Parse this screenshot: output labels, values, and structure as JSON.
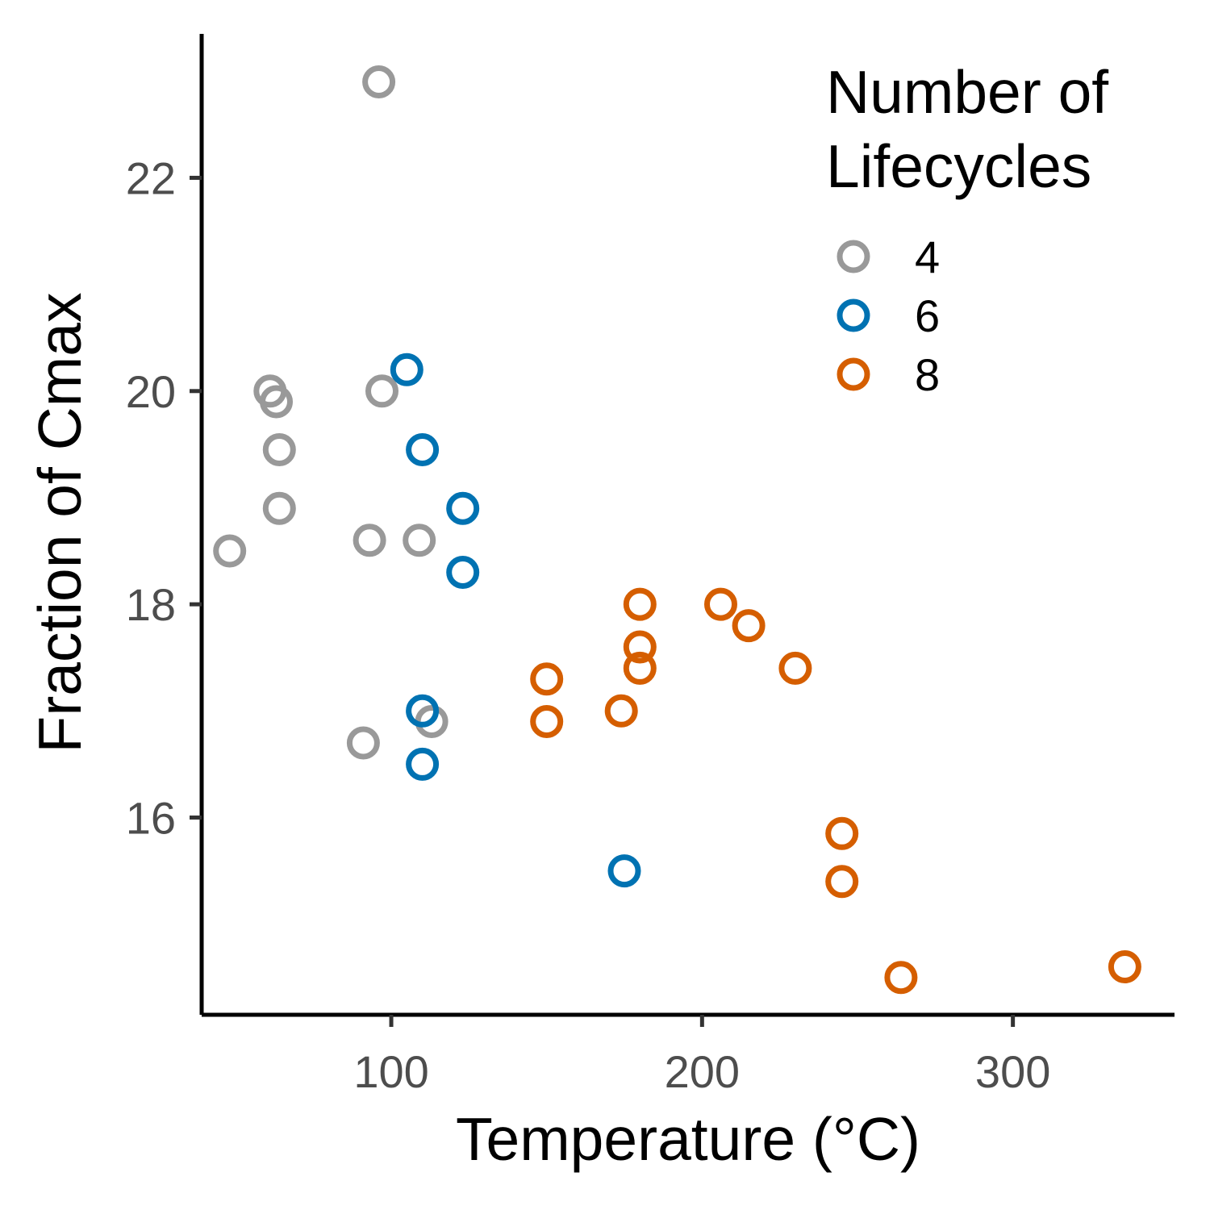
{
  "chart_data": {
    "type": "scatter",
    "title": "",
    "xlabel": "Temperature (°C)",
    "ylabel": "Fraction of Cmax",
    "xlim": [
      39,
      352
    ],
    "ylim": [
      14.15,
      23.35
    ],
    "x_ticks": [
      100,
      200,
      300
    ],
    "y_ticks": [
      16,
      18,
      20,
      22
    ],
    "x_tick_labels": [
      "100",
      "200",
      "300"
    ],
    "y_tick_labels": [
      "16",
      "18",
      "20",
      "22"
    ],
    "grid": false,
    "marker": "open-circle",
    "legend": {
      "title_lines": [
        "Number of",
        "Lifecycles"
      ],
      "position": "top-right"
    },
    "series": [
      {
        "name": "4",
        "color": "#999999",
        "points": [
          [
            96,
            22.9
          ],
          [
            61,
            20.0
          ],
          [
            63,
            19.9
          ],
          [
            97,
            20.0
          ],
          [
            64,
            19.45
          ],
          [
            64,
            18.9
          ],
          [
            48,
            18.5
          ],
          [
            93,
            18.6
          ],
          [
            109,
            18.6
          ],
          [
            91,
            16.7
          ],
          [
            113,
            16.9
          ]
        ]
      },
      {
        "name": "6",
        "color": "#0072B2",
        "points": [
          [
            105,
            20.2
          ],
          [
            110,
            19.45
          ],
          [
            123,
            18.9
          ],
          [
            123,
            18.3
          ],
          [
            110,
            17.0
          ],
          [
            110,
            16.5
          ],
          [
            175,
            15.5
          ]
        ]
      },
      {
        "name": "8",
        "color": "#D55E00",
        "points": [
          [
            150,
            17.3
          ],
          [
            150,
            16.9
          ],
          [
            174,
            17.0
          ],
          [
            180,
            18.0
          ],
          [
            180,
            17.6
          ],
          [
            180,
            17.4
          ],
          [
            206,
            18.0
          ],
          [
            215,
            17.8
          ],
          [
            230,
            17.4
          ],
          [
            245,
            15.85
          ],
          [
            245,
            15.4
          ],
          [
            264,
            14.5
          ],
          [
            336,
            14.6
          ]
        ]
      }
    ]
  }
}
